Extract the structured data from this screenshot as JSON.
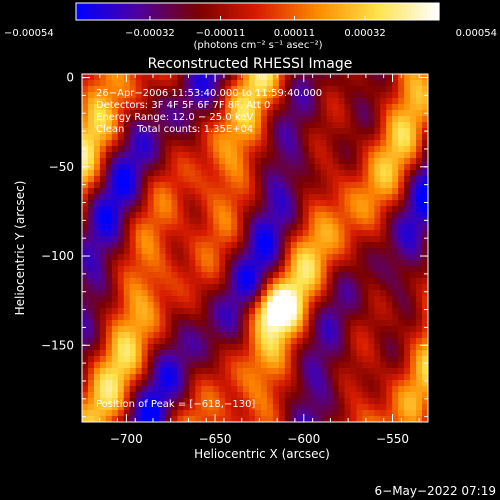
{
  "chart_data": {
    "type": "heatmap",
    "title": "Reconstructed RHESSI Image",
    "xlabel": "Heliocentric X (arcsec)",
    "ylabel": "Heliocentric Y (arcsec)",
    "xlim": [
      -725,
      -530
    ],
    "ylim": [
      -193,
      2
    ],
    "x_ticks": [
      -700,
      -650,
      -600,
      -550
    ],
    "x_tick_labels": [
      "−700",
      "−650",
      "−600",
      "−550"
    ],
    "y_ticks": [
      0,
      -50,
      -100,
      -150
    ],
    "y_tick_labels": [
      "0",
      "−50",
      "−100",
      "−150"
    ],
    "colorbar": {
      "range": [
        -0.00054,
        0.00054
      ],
      "tick_values": [
        -0.00054,
        -0.00032,
        -0.00011,
        0.00011,
        0.00032,
        0.00054
      ],
      "tick_labels": [
        "−0.00054",
        "−0.00032",
        "−0.00011",
        "0.00011",
        "0.00032",
        "0.00054"
      ],
      "unit_label": "(photons cm⁻² s⁻¹ asec⁻²)",
      "colors": [
        "#0000ff",
        "#4d00a0",
        "#7a0000",
        "#d81c00",
        "#ff8a00",
        "#ffe24a",
        "#ffffff"
      ]
    },
    "annotations": [
      "26−Apr−2006 11:53:40.000 to 11:59:40.000",
      "Detectors: 3F 4F 5F 6F 7F 8F, Att 0",
      "Energy Range: 12.0 − 25.0 keV",
      "Clean    Total counts: 1.35E+04"
    ],
    "peak_label": "Position of Peak = [−618,−130]",
    "peak": [
      -618,
      -130
    ],
    "timestamp": "6−May−2022 07:19"
  }
}
